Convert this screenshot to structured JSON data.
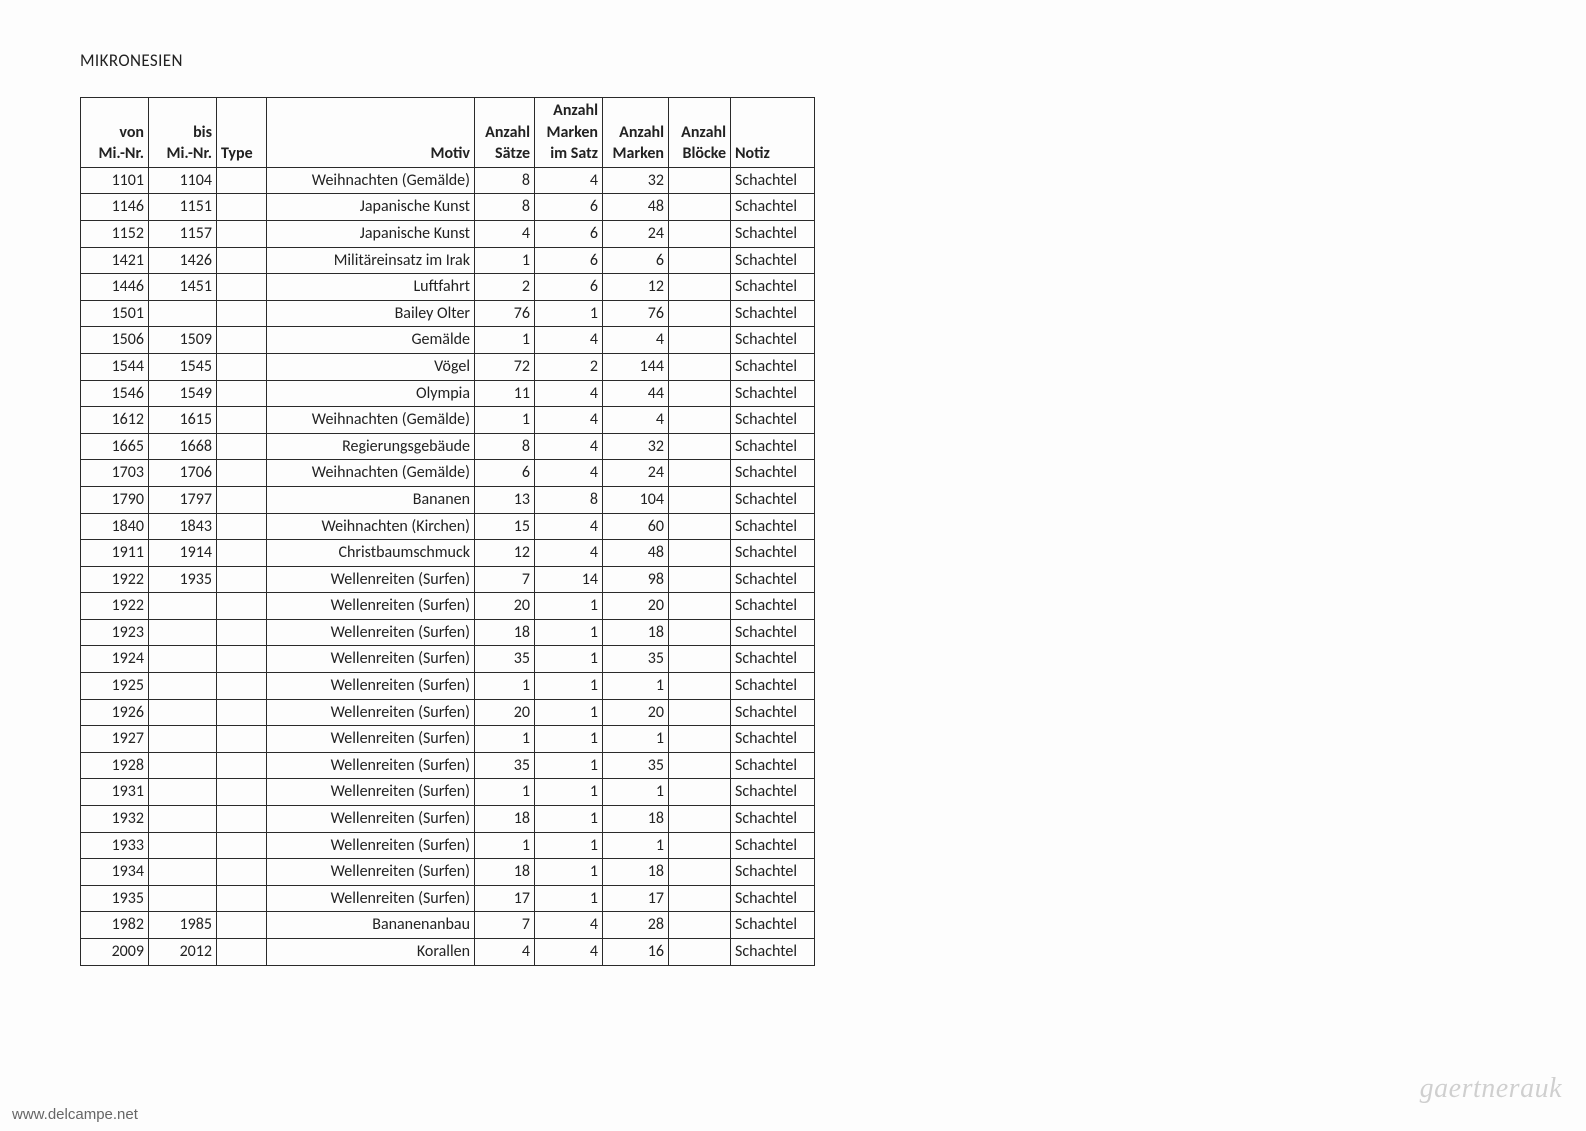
{
  "title": "MIKRONESIEN",
  "watermark_left": "www.delcampe.net",
  "watermark_right": "gaertnerauk",
  "columns": [
    {
      "key": "von",
      "label": "von\nMi.-Nr.",
      "cls": "c-von"
    },
    {
      "key": "bis",
      "label": "bis\nMi.-Nr.",
      "cls": "c-bis"
    },
    {
      "key": "type",
      "label": "Type",
      "cls": "c-type"
    },
    {
      "key": "motiv",
      "label": "Motiv",
      "cls": "c-motiv"
    },
    {
      "key": "saetze",
      "label": "Anzahl\nSätze",
      "cls": "c-saetze"
    },
    {
      "key": "ims",
      "label": "Anzahl\nMarken\nim Satz",
      "cls": "c-ims"
    },
    {
      "key": "marken",
      "label": "Anzahl\nMarken",
      "cls": "c-marken"
    },
    {
      "key": "bloecke",
      "label": "Anzahl\nBlöcke",
      "cls": "c-bloecke"
    },
    {
      "key": "notiz",
      "label": "Notiz",
      "cls": "c-notiz"
    }
  ],
  "rows": [
    {
      "von": "1101",
      "bis": "1104",
      "type": "",
      "motiv": "Weihnachten (Gemälde)",
      "saetze": "8",
      "ims": "4",
      "marken": "32",
      "bloecke": "",
      "notiz": "Schachtel"
    },
    {
      "von": "1146",
      "bis": "1151",
      "type": "",
      "motiv": "Japanische Kunst",
      "saetze": "8",
      "ims": "6",
      "marken": "48",
      "bloecke": "",
      "notiz": "Schachtel"
    },
    {
      "von": "1152",
      "bis": "1157",
      "type": "",
      "motiv": "Japanische Kunst",
      "saetze": "4",
      "ims": "6",
      "marken": "24",
      "bloecke": "",
      "notiz": "Schachtel"
    },
    {
      "von": "1421",
      "bis": "1426",
      "type": "",
      "motiv": "Militäreinsatz im Irak",
      "saetze": "1",
      "ims": "6",
      "marken": "6",
      "bloecke": "",
      "notiz": "Schachtel"
    },
    {
      "von": "1446",
      "bis": "1451",
      "type": "",
      "motiv": "Luftfahrt",
      "saetze": "2",
      "ims": "6",
      "marken": "12",
      "bloecke": "",
      "notiz": "Schachtel"
    },
    {
      "von": "1501",
      "bis": "",
      "type": "",
      "motiv": "Bailey Olter",
      "saetze": "76",
      "ims": "1",
      "marken": "76",
      "bloecke": "",
      "notiz": "Schachtel"
    },
    {
      "von": "1506",
      "bis": "1509",
      "type": "",
      "motiv": "Gemälde",
      "saetze": "1",
      "ims": "4",
      "marken": "4",
      "bloecke": "",
      "notiz": "Schachtel"
    },
    {
      "von": "1544",
      "bis": "1545",
      "type": "",
      "motiv": "Vögel",
      "saetze": "72",
      "ims": "2",
      "marken": "144",
      "bloecke": "",
      "notiz": "Schachtel"
    },
    {
      "von": "1546",
      "bis": "1549",
      "type": "",
      "motiv": "Olympia",
      "saetze": "11",
      "ims": "4",
      "marken": "44",
      "bloecke": "",
      "notiz": "Schachtel"
    },
    {
      "von": "1612",
      "bis": "1615",
      "type": "",
      "motiv": "Weihnachten (Gemälde)",
      "saetze": "1",
      "ims": "4",
      "marken": "4",
      "bloecke": "",
      "notiz": "Schachtel"
    },
    {
      "von": "1665",
      "bis": "1668",
      "type": "",
      "motiv": "Regierungsgebäude",
      "saetze": "8",
      "ims": "4",
      "marken": "32",
      "bloecke": "",
      "notiz": "Schachtel"
    },
    {
      "von": "1703",
      "bis": "1706",
      "type": "",
      "motiv": "Weihnachten (Gemälde)",
      "saetze": "6",
      "ims": "4",
      "marken": "24",
      "bloecke": "",
      "notiz": "Schachtel"
    },
    {
      "von": "1790",
      "bis": "1797",
      "type": "",
      "motiv": "Bananen",
      "saetze": "13",
      "ims": "8",
      "marken": "104",
      "bloecke": "",
      "notiz": "Schachtel"
    },
    {
      "von": "1840",
      "bis": "1843",
      "type": "",
      "motiv": "Weihnachten (Kirchen)",
      "saetze": "15",
      "ims": "4",
      "marken": "60",
      "bloecke": "",
      "notiz": "Schachtel"
    },
    {
      "von": "1911",
      "bis": "1914",
      "type": "",
      "motiv": "Christbaumschmuck",
      "saetze": "12",
      "ims": "4",
      "marken": "48",
      "bloecke": "",
      "notiz": "Schachtel"
    },
    {
      "von": "1922",
      "bis": "1935",
      "type": "",
      "motiv": "Wellenreiten (Surfen)",
      "saetze": "7",
      "ims": "14",
      "marken": "98",
      "bloecke": "",
      "notiz": "Schachtel"
    },
    {
      "von": "1922",
      "bis": "",
      "type": "",
      "motiv": "Wellenreiten (Surfen)",
      "saetze": "20",
      "ims": "1",
      "marken": "20",
      "bloecke": "",
      "notiz": "Schachtel"
    },
    {
      "von": "1923",
      "bis": "",
      "type": "",
      "motiv": "Wellenreiten (Surfen)",
      "saetze": "18",
      "ims": "1",
      "marken": "18",
      "bloecke": "",
      "notiz": "Schachtel"
    },
    {
      "von": "1924",
      "bis": "",
      "type": "",
      "motiv": "Wellenreiten (Surfen)",
      "saetze": "35",
      "ims": "1",
      "marken": "35",
      "bloecke": "",
      "notiz": "Schachtel"
    },
    {
      "von": "1925",
      "bis": "",
      "type": "",
      "motiv": "Wellenreiten (Surfen)",
      "saetze": "1",
      "ims": "1",
      "marken": "1",
      "bloecke": "",
      "notiz": "Schachtel"
    },
    {
      "von": "1926",
      "bis": "",
      "type": "",
      "motiv": "Wellenreiten (Surfen)",
      "saetze": "20",
      "ims": "1",
      "marken": "20",
      "bloecke": "",
      "notiz": "Schachtel"
    },
    {
      "von": "1927",
      "bis": "",
      "type": "",
      "motiv": "Wellenreiten (Surfen)",
      "saetze": "1",
      "ims": "1",
      "marken": "1",
      "bloecke": "",
      "notiz": "Schachtel"
    },
    {
      "von": "1928",
      "bis": "",
      "type": "",
      "motiv": "Wellenreiten (Surfen)",
      "saetze": "35",
      "ims": "1",
      "marken": "35",
      "bloecke": "",
      "notiz": "Schachtel"
    },
    {
      "von": "1931",
      "bis": "",
      "type": "",
      "motiv": "Wellenreiten (Surfen)",
      "saetze": "1",
      "ims": "1",
      "marken": "1",
      "bloecke": "",
      "notiz": "Schachtel"
    },
    {
      "von": "1932",
      "bis": "",
      "type": "",
      "motiv": "Wellenreiten (Surfen)",
      "saetze": "18",
      "ims": "1",
      "marken": "18",
      "bloecke": "",
      "notiz": "Schachtel"
    },
    {
      "von": "1933",
      "bis": "",
      "type": "",
      "motiv": "Wellenreiten (Surfen)",
      "saetze": "1",
      "ims": "1",
      "marken": "1",
      "bloecke": "",
      "notiz": "Schachtel"
    },
    {
      "von": "1934",
      "bis": "",
      "type": "",
      "motiv": "Wellenreiten (Surfen)",
      "saetze": "18",
      "ims": "1",
      "marken": "18",
      "bloecke": "",
      "notiz": "Schachtel"
    },
    {
      "von": "1935",
      "bis": "",
      "type": "",
      "motiv": "Wellenreiten (Surfen)",
      "saetze": "17",
      "ims": "1",
      "marken": "17",
      "bloecke": "",
      "notiz": "Schachtel"
    },
    {
      "von": "1982",
      "bis": "1985",
      "type": "",
      "motiv": "Bananenanbau",
      "saetze": "7",
      "ims": "4",
      "marken": "28",
      "bloecke": "",
      "notiz": "Schachtel"
    },
    {
      "von": "2009",
      "bis": "2012",
      "type": "",
      "motiv": "Korallen",
      "saetze": "4",
      "ims": "4",
      "marken": "16",
      "bloecke": "",
      "notiz": "Schachtel"
    }
  ]
}
